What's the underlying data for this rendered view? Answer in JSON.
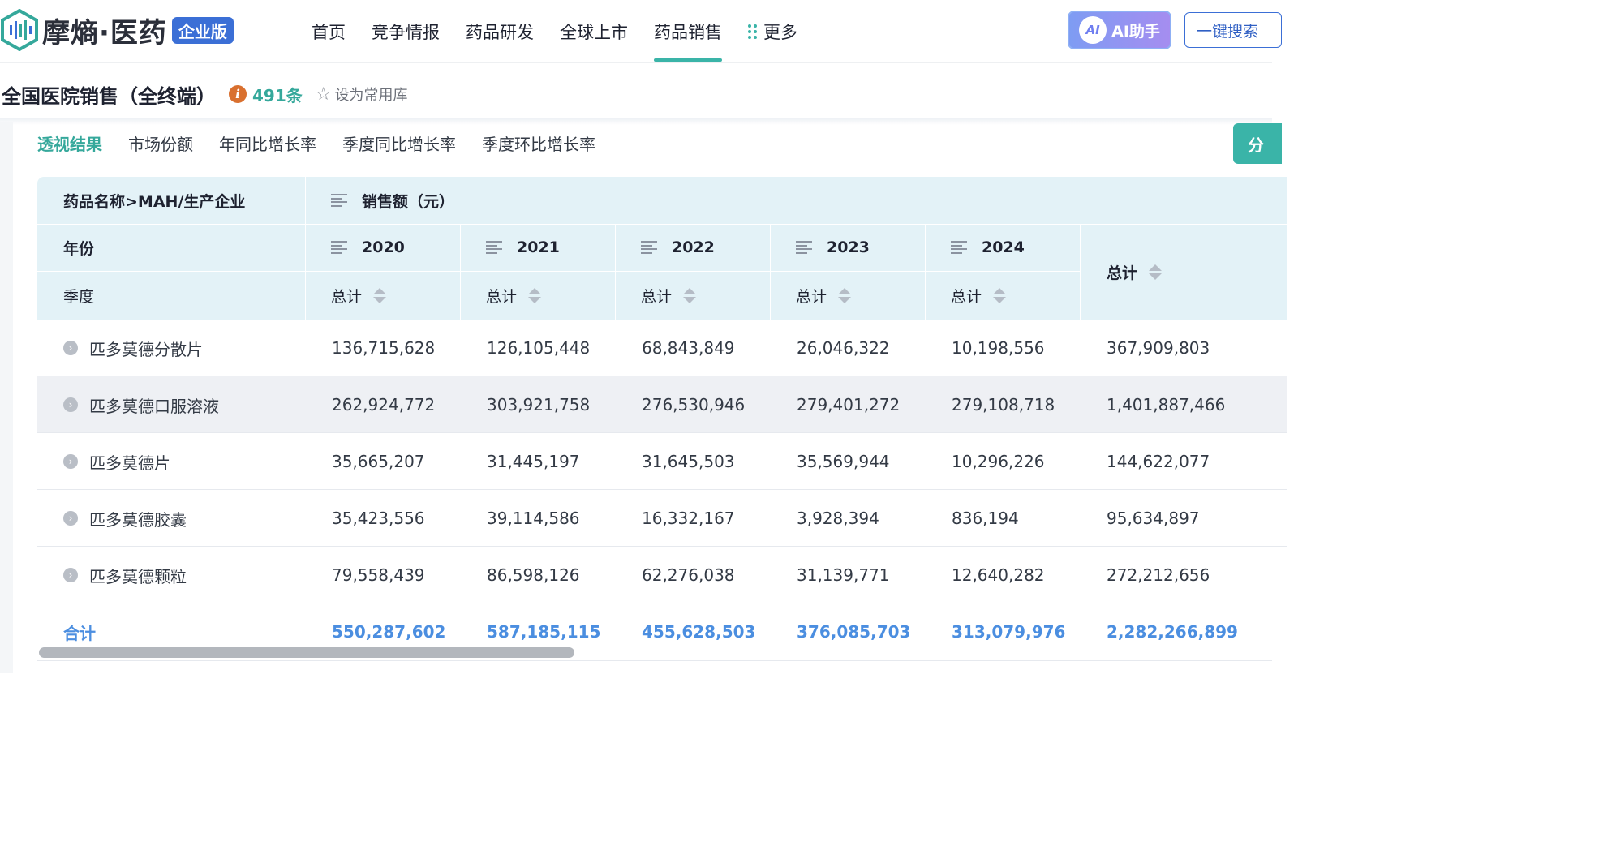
{
  "logo": {
    "text": "摩熵·医药",
    "badge": "企业版"
  },
  "nav": {
    "items": [
      {
        "label": "首页"
      },
      {
        "label": "竞争情报"
      },
      {
        "label": "药品研发"
      },
      {
        "label": "全球上市"
      },
      {
        "label": "药品销售",
        "active": true
      },
      {
        "label": "更多"
      }
    ]
  },
  "ai_button": {
    "icon_text": "AI",
    "label": "AI助手"
  },
  "search_button": {
    "label": "一键搜索"
  },
  "title": {
    "text": "全国医院销售（全终端）",
    "count": "491条",
    "favorite_label": "设为常用库"
  },
  "tabs": [
    {
      "label": "透视结果",
      "active": true
    },
    {
      "label": "市场份额"
    },
    {
      "label": "年同比增长率"
    },
    {
      "label": "季度同比增长率"
    },
    {
      "label": "季度环比增长率"
    }
  ],
  "side_button": {
    "label": "分"
  },
  "table": {
    "row_header_1": "药品名称>MAH/生产企业",
    "row_header_2": "年份",
    "row_header_3": "季度",
    "measure": "销售额（元）",
    "years": [
      "2020",
      "2021",
      "2022",
      "2023",
      "2024"
    ],
    "sub_label": "总计",
    "grand_total_label": "总计",
    "rows": [
      {
        "name": "匹多莫德分散片",
        "values": [
          "136,715,628",
          "126,105,448",
          "68,843,849",
          "26,046,322",
          "10,198,556",
          "367,909,803"
        ]
      },
      {
        "name": "匹多莫德口服溶液",
        "values": [
          "262,924,772",
          "303,921,758",
          "276,530,946",
          "279,401,272",
          "279,108,718",
          "1,401,887,466"
        ]
      },
      {
        "name": "匹多莫德片",
        "values": [
          "35,665,207",
          "31,445,197",
          "31,645,503",
          "35,569,944",
          "10,296,226",
          "144,622,077"
        ]
      },
      {
        "name": "匹多莫德胶囊",
        "values": [
          "35,423,556",
          "39,114,586",
          "16,332,167",
          "3,928,394",
          "836,194",
          "95,634,897"
        ]
      },
      {
        "name": "匹多莫德颗粒",
        "values": [
          "79,558,439",
          "86,598,126",
          "62,276,038",
          "31,139,771",
          "12,640,282",
          "272,212,656"
        ]
      }
    ],
    "total": {
      "label": "合计",
      "values": [
        "550,287,602",
        "587,185,115",
        "455,628,503",
        "376,085,703",
        "313,079,976",
        "2,282,266,899"
      ]
    }
  },
  "colors": {
    "accent": "#3ab4a8",
    "header_bg": "#e3f2f7",
    "total_text": "#4b8ee0",
    "brand_blue": "#3b6fd6"
  }
}
